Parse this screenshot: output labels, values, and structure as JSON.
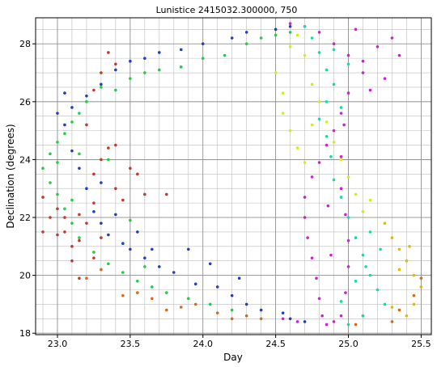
{
  "chart_data": {
    "type": "scatter",
    "title": "Lunistice 2415032.300000, 750",
    "xlabel": "Day",
    "ylabel": "Declination (degrees)",
    "xlim": [
      22.85,
      25.57
    ],
    "ylim": [
      17.95,
      28.9
    ],
    "x_major_ticks": [
      23.0,
      23.5,
      24.0,
      24.5,
      25.0,
      25.5
    ],
    "x_tick_labels": [
      "23.0",
      "23.5",
      "24.0",
      "24.5",
      "25.0",
      "25.5"
    ],
    "y_major_ticks": [
      18,
      20,
      22,
      24,
      26,
      28
    ],
    "y_tick_labels": [
      "18",
      "20",
      "22",
      "24",
      "26",
      "28"
    ],
    "x_minor_step": 0.1,
    "y_minor_step": 0.5,
    "grid": true,
    "legend": "none",
    "marker_size": 3,
    "series": [
      {
        "color": "#c0392b",
        "points": [
          [
            22.9,
            21.5
          ],
          [
            22.9,
            22.7
          ],
          [
            22.95,
            22.0
          ],
          [
            23.0,
            22.3
          ],
          [
            23.0,
            21.4
          ],
          [
            23.05,
            22.0
          ],
          [
            23.05,
            21.5
          ],
          [
            23.1,
            21.0
          ],
          [
            23.1,
            20.5
          ],
          [
            23.15,
            21.2
          ],
          [
            23.2,
            21.8
          ],
          [
            23.15,
            22.1
          ],
          [
            23.25,
            22.5
          ],
          [
            23.25,
            23.5
          ],
          [
            23.3,
            24.0
          ],
          [
            23.35,
            24.4
          ],
          [
            23.4,
            24.5
          ],
          [
            23.4,
            23.0
          ],
          [
            23.45,
            22.6
          ],
          [
            23.3,
            21.3
          ],
          [
            23.25,
            20.6
          ],
          [
            23.15,
            19.9
          ],
          [
            23.5,
            23.7
          ],
          [
            23.55,
            23.5
          ],
          [
            23.6,
            22.8
          ],
          [
            23.75,
            22.8
          ],
          [
            23.2,
            25.2
          ],
          [
            23.25,
            26.4
          ],
          [
            23.3,
            27.0
          ],
          [
            23.35,
            27.7
          ],
          [
            23.4,
            27.3
          ]
        ]
      },
      {
        "color": "#1f3fbf",
        "points": [
          [
            23.0,
            25.6
          ],
          [
            23.05,
            25.2
          ],
          [
            23.1,
            24.3
          ],
          [
            23.15,
            23.7
          ],
          [
            23.2,
            23.0
          ],
          [
            23.25,
            22.2
          ],
          [
            23.3,
            21.8
          ],
          [
            23.35,
            21.4
          ],
          [
            23.45,
            21.1
          ],
          [
            23.5,
            20.9
          ],
          [
            23.6,
            20.6
          ],
          [
            23.7,
            20.3
          ],
          [
            23.8,
            20.1
          ],
          [
            23.95,
            19.7
          ],
          [
            24.1,
            19.6
          ],
          [
            24.2,
            19.3
          ],
          [
            24.3,
            19.0
          ],
          [
            24.4,
            18.8
          ],
          [
            24.55,
            18.7
          ],
          [
            24.6,
            18.5
          ],
          [
            24.7,
            18.4
          ],
          [
            23.1,
            25.8
          ],
          [
            23.2,
            26.2
          ],
          [
            23.3,
            26.6
          ],
          [
            23.4,
            27.1
          ],
          [
            23.5,
            27.4
          ],
          [
            23.6,
            27.5
          ],
          [
            23.7,
            27.7
          ],
          [
            23.85,
            27.8
          ],
          [
            24.0,
            28.0
          ],
          [
            24.2,
            28.2
          ],
          [
            24.3,
            28.4
          ],
          [
            24.5,
            28.5
          ],
          [
            24.6,
            28.6
          ],
          [
            23.9,
            20.9
          ],
          [
            24.05,
            20.4
          ],
          [
            24.25,
            19.9
          ],
          [
            23.55,
            21.5
          ],
          [
            23.4,
            22.1
          ],
          [
            23.05,
            26.3
          ],
          [
            23.3,
            23.2
          ],
          [
            23.65,
            20.9
          ]
        ]
      },
      {
        "color": "#22cc44",
        "points": [
          [
            22.9,
            23.7
          ],
          [
            22.95,
            24.2
          ],
          [
            23.0,
            24.6
          ],
          [
            23.05,
            24.9
          ],
          [
            23.1,
            25.3
          ],
          [
            23.15,
            25.6
          ],
          [
            23.2,
            26.0
          ],
          [
            23.3,
            26.5
          ],
          [
            23.4,
            26.4
          ],
          [
            23.5,
            26.8
          ],
          [
            23.6,
            27.0
          ],
          [
            23.7,
            27.1
          ],
          [
            23.85,
            27.2
          ],
          [
            24.0,
            27.5
          ],
          [
            24.15,
            27.6
          ],
          [
            24.3,
            28.0
          ],
          [
            24.4,
            28.2
          ],
          [
            24.5,
            28.3
          ],
          [
            24.6,
            28.4
          ],
          [
            22.95,
            23.2
          ],
          [
            23.0,
            22.8
          ],
          [
            23.05,
            22.3
          ],
          [
            23.1,
            21.8
          ],
          [
            23.15,
            21.3
          ],
          [
            23.25,
            20.8
          ],
          [
            23.35,
            20.4
          ],
          [
            23.45,
            20.1
          ],
          [
            23.55,
            19.8
          ],
          [
            23.65,
            19.6
          ],
          [
            23.75,
            19.4
          ],
          [
            23.9,
            19.2
          ],
          [
            24.05,
            19.0
          ],
          [
            24.2,
            18.8
          ],
          [
            23.0,
            23.9
          ],
          [
            23.15,
            24.2
          ],
          [
            23.35,
            24.0
          ],
          [
            23.5,
            21.9
          ],
          [
            23.1,
            22.6
          ],
          [
            23.6,
            20.3
          ]
        ]
      },
      {
        "color": "#d2691e",
        "points": [
          [
            23.2,
            19.9
          ],
          [
            23.3,
            20.2
          ],
          [
            23.45,
            19.3
          ],
          [
            23.55,
            19.4
          ],
          [
            23.65,
            19.2
          ],
          [
            23.75,
            18.8
          ],
          [
            23.85,
            18.9
          ],
          [
            23.95,
            19.0
          ],
          [
            24.1,
            18.7
          ],
          [
            24.2,
            18.5
          ],
          [
            24.3,
            18.6
          ],
          [
            24.4,
            18.5
          ],
          [
            25.05,
            18.3
          ],
          [
            25.1,
            18.6
          ],
          [
            25.3,
            18.4
          ],
          [
            25.35,
            18.8
          ],
          [
            25.45,
            19.3
          ],
          [
            25.5,
            19.9
          ]
        ]
      },
      {
        "color": "#cc22cc",
        "points": [
          [
            24.6,
            28.7
          ],
          [
            24.7,
            28.6
          ],
          [
            24.8,
            28.4
          ],
          [
            24.9,
            28.0
          ],
          [
            25.0,
            27.6
          ],
          [
            25.1,
            27.0
          ],
          [
            25.15,
            26.4
          ],
          [
            24.95,
            25.6
          ],
          [
            24.9,
            25.0
          ],
          [
            24.85,
            24.5
          ],
          [
            24.8,
            23.9
          ],
          [
            24.75,
            23.4
          ],
          [
            24.7,
            22.7
          ],
          [
            24.7,
            22.0
          ],
          [
            24.72,
            21.3
          ],
          [
            24.75,
            20.6
          ],
          [
            24.78,
            19.9
          ],
          [
            24.8,
            19.2
          ],
          [
            24.82,
            18.6
          ],
          [
            24.85,
            18.3
          ],
          [
            24.9,
            18.4
          ],
          [
            24.95,
            18.6
          ],
          [
            24.98,
            19.4
          ],
          [
            25.0,
            20.3
          ],
          [
            25.0,
            21.2
          ],
          [
            24.98,
            22.1
          ],
          [
            24.95,
            23.0
          ],
          [
            24.95,
            24.1
          ],
          [
            24.97,
            25.2
          ],
          [
            25.0,
            26.3
          ],
          [
            25.1,
            27.4
          ],
          [
            25.2,
            27.9
          ],
          [
            25.3,
            28.2
          ],
          [
            25.35,
            27.6
          ],
          [
            25.25,
            26.8
          ],
          [
            25.05,
            28.5
          ],
          [
            24.55,
            18.5
          ],
          [
            24.65,
            18.4
          ],
          [
            24.88,
            20.7
          ],
          [
            24.86,
            22.4
          ]
        ]
      },
      {
        "color": "#11ddaa",
        "points": [
          [
            24.7,
            28.6
          ],
          [
            24.75,
            28.2
          ],
          [
            24.8,
            27.7
          ],
          [
            24.85,
            27.1
          ],
          [
            24.9,
            26.6
          ],
          [
            24.85,
            26.0
          ],
          [
            24.8,
            25.4
          ],
          [
            24.85,
            24.8
          ],
          [
            24.88,
            24.1
          ],
          [
            24.9,
            23.3
          ],
          [
            24.95,
            22.7
          ],
          [
            25.0,
            22.0
          ],
          [
            25.05,
            21.3
          ],
          [
            25.1,
            20.7
          ],
          [
            25.15,
            20.0
          ],
          [
            25.2,
            19.5
          ],
          [
            25.25,
            19.0
          ],
          [
            25.1,
            18.6
          ],
          [
            25.0,
            18.3
          ],
          [
            24.95,
            19.1
          ],
          [
            25.05,
            19.8
          ],
          [
            25.15,
            21.5
          ],
          [
            25.0,
            27.3
          ],
          [
            24.9,
            27.8
          ],
          [
            24.95,
            25.8
          ],
          [
            25.12,
            20.3
          ],
          [
            25.22,
            20.9
          ]
        ]
      },
      {
        "color": "#ccee22",
        "points": [
          [
            24.5,
            27.0
          ],
          [
            24.55,
            26.3
          ],
          [
            24.55,
            25.6
          ],
          [
            24.6,
            25.0
          ],
          [
            24.65,
            24.4
          ],
          [
            24.7,
            23.9
          ],
          [
            24.7,
            27.6
          ],
          [
            24.75,
            26.6
          ],
          [
            24.8,
            26.0
          ],
          [
            24.85,
            25.3
          ],
          [
            24.9,
            24.6
          ],
          [
            24.95,
            24.0
          ],
          [
            25.0,
            23.4
          ],
          [
            25.05,
            22.8
          ],
          [
            25.1,
            22.2
          ],
          [
            25.15,
            22.6
          ],
          [
            24.65,
            28.3
          ],
          [
            24.6,
            27.9
          ],
          [
            24.75,
            25.2
          ]
        ]
      },
      {
        "color": "#ddbb00",
        "points": [
          [
            25.25,
            21.8
          ],
          [
            25.3,
            21.3
          ],
          [
            25.35,
            20.9
          ],
          [
            25.4,
            20.5
          ],
          [
            25.45,
            20.0
          ],
          [
            25.5,
            19.6
          ],
          [
            25.45,
            19.0
          ],
          [
            25.4,
            18.6
          ],
          [
            25.3,
            18.9
          ],
          [
            25.35,
            20.2
          ],
          [
            25.42,
            21.0
          ]
        ]
      }
    ]
  }
}
